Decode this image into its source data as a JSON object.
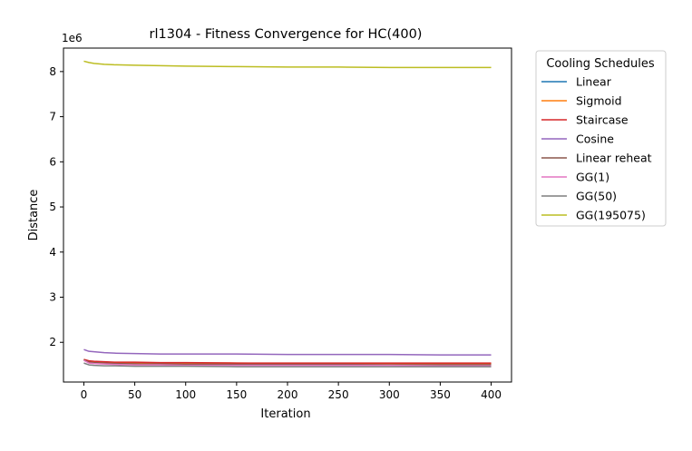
{
  "chart_data": {
    "type": "line",
    "title": "rl1304 - Fitness Convergence for HC(400)",
    "xlabel": "Iteration",
    "ylabel": "Distance",
    "y_offset_label": "1e6",
    "xlim": [
      -20,
      420
    ],
    "ylim": [
      1.12,
      8.52
    ],
    "y_unit_multiplier": 1000000,
    "xticks": [
      0,
      50,
      100,
      150,
      200,
      250,
      300,
      350,
      400
    ],
    "xtick_labels": [
      "0",
      "50",
      "100",
      "150",
      "200",
      "250",
      "300",
      "350",
      "400"
    ],
    "yticks": [
      2,
      3,
      4,
      5,
      6,
      7,
      8
    ],
    "ytick_labels": [
      "2",
      "3",
      "4",
      "5",
      "6",
      "7",
      "8"
    ],
    "grid": false,
    "legend_title": "Cooling Schedules",
    "legend_placement": "outside right, upper",
    "x": [
      0,
      5,
      10,
      20,
      30,
      50,
      75,
      100,
      150,
      200,
      250,
      300,
      350,
      400
    ],
    "series": [
      {
        "name": "Linear",
        "color": "#1f77b4",
        "values": [
          1.62,
          1.57,
          1.56,
          1.55,
          1.54,
          1.53,
          1.53,
          1.53,
          1.52,
          1.52,
          1.52,
          1.52,
          1.52,
          1.52
        ]
      },
      {
        "name": "Sigmoid",
        "color": "#ff7f0e",
        "values": [
          1.62,
          1.58,
          1.57,
          1.56,
          1.55,
          1.55,
          1.54,
          1.54,
          1.54,
          1.53,
          1.53,
          1.53,
          1.53,
          1.53
        ]
      },
      {
        "name": "Staircase",
        "color": "#d62728",
        "values": [
          1.62,
          1.59,
          1.58,
          1.57,
          1.56,
          1.56,
          1.55,
          1.55,
          1.54,
          1.54,
          1.54,
          1.54,
          1.54,
          1.54
        ]
      },
      {
        "name": "Cosine",
        "color": "#9467bd",
        "values": [
          1.84,
          1.8,
          1.79,
          1.77,
          1.76,
          1.75,
          1.74,
          1.74,
          1.74,
          1.73,
          1.73,
          1.73,
          1.72,
          1.72
        ]
      },
      {
        "name": "Linear reheat",
        "color": "#8c564b",
        "values": [
          1.61,
          1.56,
          1.55,
          1.54,
          1.53,
          1.52,
          1.52,
          1.51,
          1.51,
          1.51,
          1.51,
          1.5,
          1.5,
          1.5
        ]
      },
      {
        "name": "GG(1)",
        "color": "#e377c2",
        "values": [
          1.6,
          1.54,
          1.53,
          1.52,
          1.51,
          1.5,
          1.5,
          1.49,
          1.49,
          1.49,
          1.49,
          1.49,
          1.48,
          1.48
        ]
      },
      {
        "name": "GG(50)",
        "color": "#7f7f7f",
        "values": [
          1.54,
          1.5,
          1.49,
          1.48,
          1.48,
          1.47,
          1.47,
          1.47,
          1.46,
          1.46,
          1.46,
          1.46,
          1.46,
          1.46
        ]
      },
      {
        "name": "GG(195075)",
        "color": "#bcbd22",
        "values": [
          8.23,
          8.2,
          8.18,
          8.16,
          8.15,
          8.14,
          8.13,
          8.12,
          8.11,
          8.1,
          8.1,
          8.09,
          8.09,
          8.09
        ]
      }
    ]
  }
}
